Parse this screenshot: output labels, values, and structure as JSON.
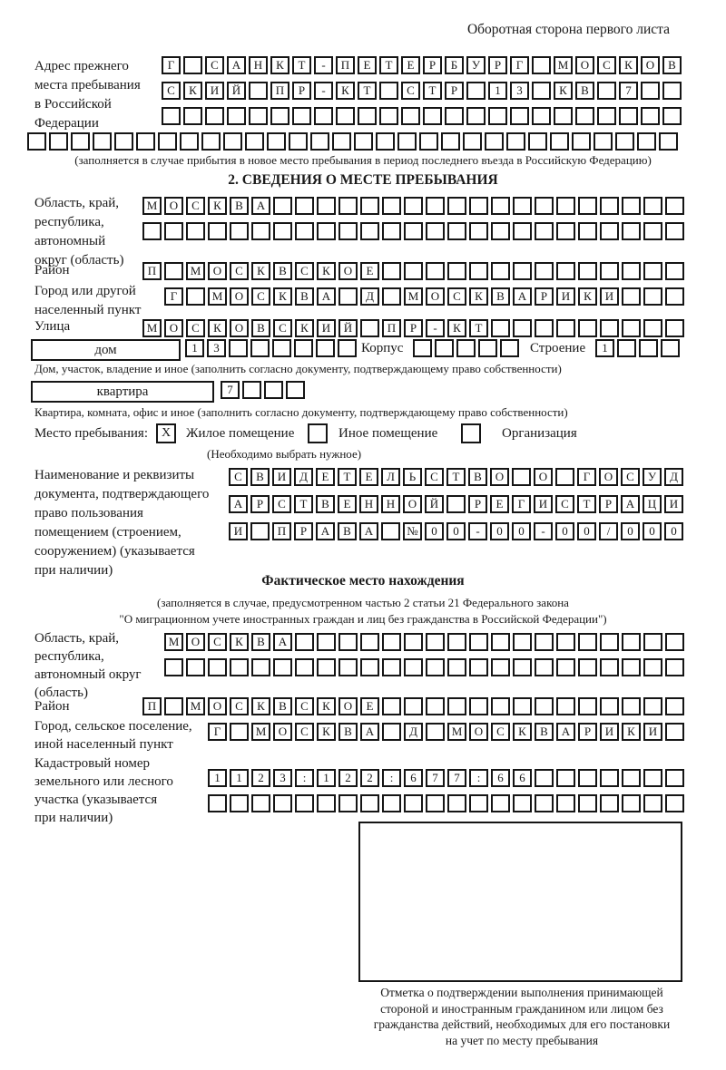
{
  "page": {
    "header_note": "Оборотная сторона первого листа"
  },
  "prev_address": {
    "label_lines": [
      "Адрес прежнего",
      "места пребывания",
      "в Российской",
      "Федерации"
    ],
    "row1": {
      "text": "Г САНКТ-ПЕТЕРБУРГ МОСКОВ",
      "count": 24
    },
    "row2": {
      "text": "СКИЙ ПР-КТ СТР 13 КВ 7",
      "count": 24
    },
    "row3": {
      "text": "",
      "count": 24
    },
    "row4": {
      "text": "",
      "count": 30
    },
    "note": "(заполняется в случае прибытия в новое место пребывания в период последнего въезда в Российскую Федерацию)"
  },
  "section2": {
    "title": "2. СВЕДЕНИЯ О МЕСТЕ ПРЕБЫВАНИЯ",
    "region": {
      "label_lines": [
        "Область, край,",
        "республика,",
        "автономный",
        "округ (область)"
      ],
      "row1": {
        "text": "МОСКВА",
        "count": 25
      },
      "row2": {
        "text": "",
        "count": 25
      }
    },
    "district": {
      "label": "Район",
      "row": {
        "text": "П МОСКВСКОЕ",
        "count": 25
      }
    },
    "city": {
      "label_lines": [
        "Город или другой",
        "населенный пункт"
      ],
      "row": {
        "text": "Г МОСКВА Д МОСКВАРИКИ",
        "count": 24
      }
    },
    "street": {
      "label": "Улица",
      "row": {
        "text": "МОСКОВСКИЙ ПР-КТ",
        "count": 25
      }
    },
    "house": {
      "box_label": "дом",
      "cells": {
        "text": "13",
        "count": 8
      },
      "korpus_label": "Корпус",
      "korpus_cells": {
        "text": "",
        "count": 5
      },
      "stroenie_label": "Строение",
      "stroenie_cells": {
        "text": "1",
        "count": 4
      },
      "note": "Дом, участок, владение и иное (заполнить согласно документу, подтверждающему право собственности)"
    },
    "apartment": {
      "box_label": "квартира",
      "cells": {
        "text": "7",
        "count": 4
      },
      "note": "Квартира, комната, офис и иное (заполнить согласно документу, подтверждающему право собственности)"
    },
    "stay_type": {
      "label": "Место пребывания:",
      "options": [
        {
          "label": "Жилое помещение",
          "checked": "X"
        },
        {
          "label": "Иное помещение",
          "checked": ""
        },
        {
          "label": "Организация",
          "checked": ""
        }
      ],
      "note": "(Необходимо выбрать нужное)"
    },
    "doc": {
      "label_lines": [
        "Наименование и реквизиты",
        "документа, подтверждающего",
        "право пользования",
        "помещением (строением,",
        "сооружением) (указывается",
        "при наличии)"
      ],
      "row1": {
        "text": "СВИДЕТЕЛЬСТВО О ГОСУД",
        "count": 21
      },
      "row2": {
        "text": "АРСТВЕННОЙ РЕГИСТРАЦИ",
        "count": 21
      },
      "row3": {
        "text": "И ПРАВА №00-00-00/000",
        "count": 21
      }
    }
  },
  "actual_location": {
    "title": "Фактическое место нахождения",
    "note_line1": "(заполняется в случае, предусмотренном частью 2 статьи 21 Федерального закона",
    "note_line2": "\"О миграционном учете иностранных граждан и лиц без гражданства в Российской Федерации\")",
    "region": {
      "label_lines": [
        "Область, край,",
        "республика,",
        "автономный округ",
        "(область)"
      ],
      "row1": {
        "text": "МОСКВА",
        "count": 24
      },
      "row2": {
        "text": "",
        "count": 24
      }
    },
    "district": {
      "label": "Район",
      "row": {
        "text": "П МОСКВСКОЕ",
        "count": 25
      }
    },
    "city": {
      "label_lines": [
        "Город, сельское поселение,",
        "иной населенный пункт"
      ],
      "row": {
        "text": "Г МОСКВА Д МОСКВАРИКИ",
        "count": 22
      }
    },
    "cadastral": {
      "label_lines": [
        "Кадастровый номер",
        "земельного или лесного",
        "участка (указывается",
        "при наличии)"
      ],
      "row1": {
        "text": "1123:122:677:66",
        "count": 22
      },
      "row2": {
        "text": "",
        "count": 22
      }
    },
    "stamp_caption_lines": [
      "Отметка о подтверждении выполнения принимающей",
      "стороной и иностранным гражданином или лицом без",
      "гражданства действий, необходимых для его постановки",
      "на учет по месту пребывания"
    ]
  }
}
